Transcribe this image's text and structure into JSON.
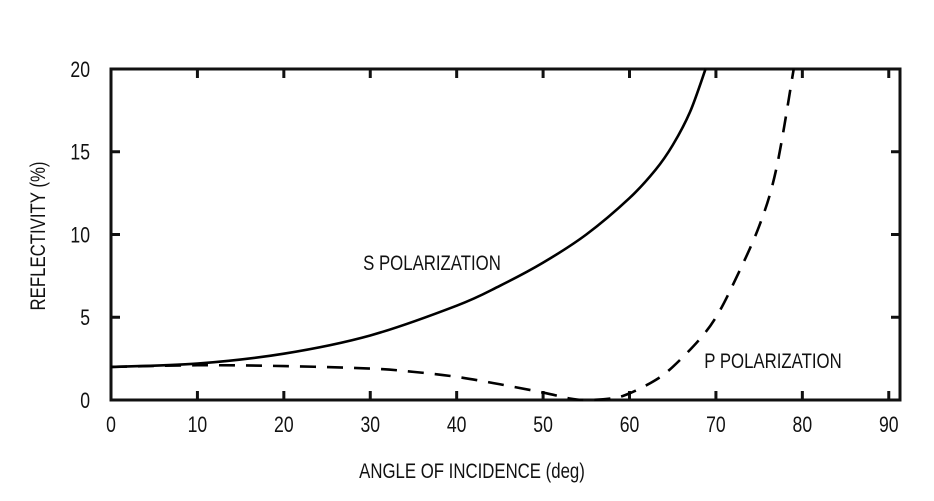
{
  "chart_data": {
    "type": "line",
    "title": "",
    "xlabel": "ANGLE OF INCIDENCE (deg)",
    "ylabel": "REFLECTIVITY (%)",
    "xlim": [
      0,
      91.3
    ],
    "ylim": [
      0,
      20
    ],
    "xticks": [
      0,
      10,
      20,
      30,
      40,
      50,
      60,
      70,
      80,
      90
    ],
    "yticks": [
      0,
      5,
      10,
      15,
      20
    ],
    "grid": false,
    "series": [
      {
        "name": "S POLARIZATION",
        "style": "solid",
        "color": "#000000",
        "x": [
          0,
          10,
          20,
          30,
          40,
          45,
          50,
          55,
          60,
          63,
          65,
          67,
          68.8
        ],
        "y": [
          2.0,
          2.2,
          2.8,
          3.9,
          5.7,
          6.9,
          8.3,
          10.0,
          12.2,
          13.9,
          15.4,
          17.4,
          20.0
        ]
      },
      {
        "name": "P POLARIZATION",
        "style": "dashed",
        "color": "#000000",
        "x": [
          0,
          10,
          20,
          30,
          35,
          40,
          45,
          50,
          53,
          55,
          58,
          60,
          63,
          65,
          68,
          70,
          72,
          75,
          77,
          79
        ],
        "y": [
          2.0,
          2.1,
          2.05,
          1.9,
          1.7,
          1.4,
          0.95,
          0.45,
          0.1,
          0.0,
          0.1,
          0.4,
          1.2,
          2.0,
          3.6,
          5.0,
          7.0,
          10.5,
          14.0,
          20.0
        ]
      }
    ],
    "annotations": [
      {
        "text": "S POLARIZATION",
        "x": 45,
        "y": 8.3
      },
      {
        "text": "P POLARIZATION",
        "x": 79.5,
        "y": 2.4
      }
    ]
  }
}
